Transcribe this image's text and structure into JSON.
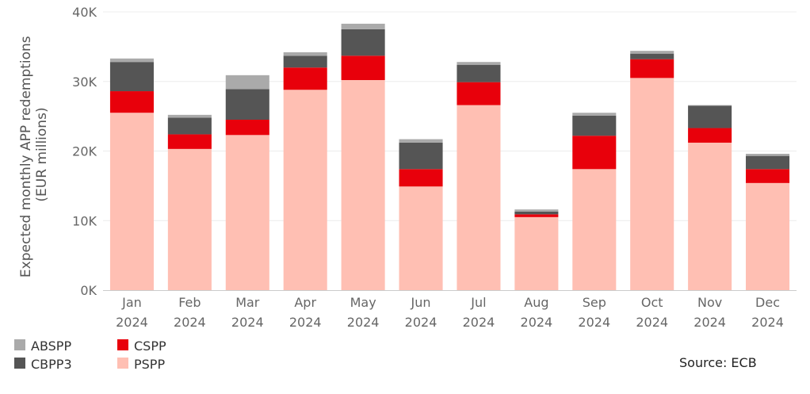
{
  "chart_data": {
    "type": "bar",
    "stacked": true,
    "ylabel_lines": [
      "Expected monthly APP redemptions",
      "(EUR millions)"
    ],
    "y_ticks": [
      "0K",
      "10K",
      "20K",
      "30K",
      "40K"
    ],
    "ylim": [
      0,
      40000
    ],
    "categories": [
      [
        "Jan",
        "2024"
      ],
      [
        "Feb",
        "2024"
      ],
      [
        "Mar",
        "2024"
      ],
      [
        "Apr",
        "2024"
      ],
      [
        "May",
        "2024"
      ],
      [
        "Jun",
        "2024"
      ],
      [
        "Jul",
        "2024"
      ],
      [
        "Aug",
        "2024"
      ],
      [
        "Sep",
        "2024"
      ],
      [
        "Oct",
        "2024"
      ],
      [
        "Nov",
        "2024"
      ],
      [
        "Dec",
        "2024"
      ]
    ],
    "series": [
      {
        "name": "PSPP",
        "color": "#FFBFB3",
        "values": [
          25500,
          20300,
          22300,
          28800,
          30200,
          14900,
          26600,
          10500,
          17400,
          30500,
          21200,
          15400
        ]
      },
      {
        "name": "CSPP",
        "color": "#E8000B",
        "values": [
          3100,
          2100,
          2200,
          3200,
          3500,
          2500,
          3300,
          400,
          4800,
          2700,
          2100,
          2000
        ]
      },
      {
        "name": "CBPP3",
        "color": "#555555",
        "values": [
          4200,
          2400,
          4400,
          1700,
          3800,
          3800,
          2500,
          400,
          2900,
          800,
          3200,
          1900
        ]
      },
      {
        "name": "ABSPP",
        "color": "#AAAAAA",
        "values": [
          500,
          400,
          2000,
          500,
          800,
          500,
          400,
          300,
          400,
          400,
          100,
          300
        ]
      }
    ],
    "legend_order": [
      "ABSPP",
      "CSPP",
      "CBPP3",
      "PSPP"
    ],
    "legend_position": "bottom-left",
    "grid": true
  },
  "source": "Source: ECB"
}
